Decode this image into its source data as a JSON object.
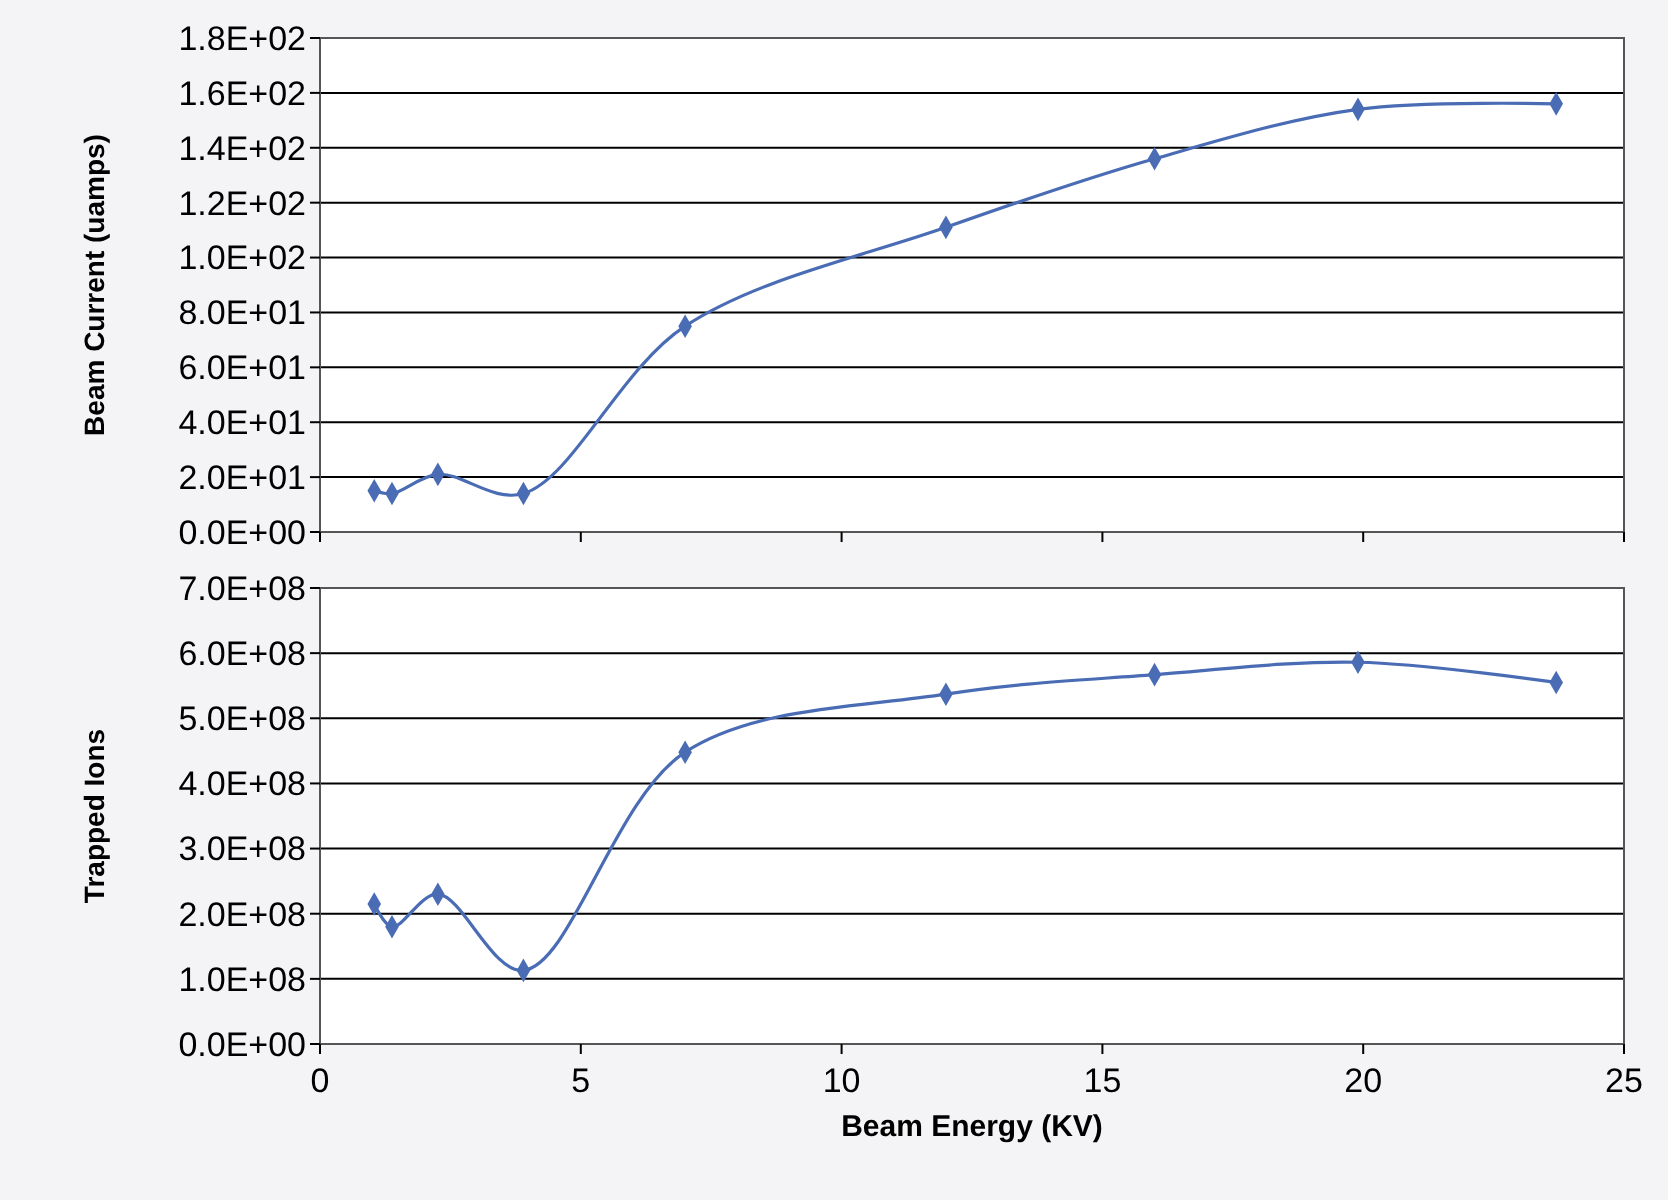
{
  "chart_data": [
    {
      "type": "line",
      "ylabel": "Beam Current (uamps)",
      "x": [
        1.04,
        1.38,
        2.26,
        3.9,
        7.0,
        12.0,
        16.0,
        19.9,
        23.7
      ],
      "series": [
        {
          "color": "#4a6cb5",
          "values": [
            15,
            14,
            21,
            14,
            75,
            111,
            136,
            154,
            156
          ]
        }
      ],
      "xlim": [
        0,
        25
      ],
      "xticks": [
        0,
        5,
        10,
        15,
        20,
        25
      ],
      "ylim": [
        0,
        180
      ],
      "yticks": [
        {
          "value": 0,
          "label": "0.0E+00"
        },
        {
          "value": 20,
          "label": "2.0E+01"
        },
        {
          "value": 40,
          "label": "4.0E+01"
        },
        {
          "value": 60,
          "label": "6.0E+01"
        },
        {
          "value": 80,
          "label": "8.0E+01"
        },
        {
          "value": 100,
          "label": "1.0E+02"
        },
        {
          "value": 120,
          "label": "1.2E+02"
        },
        {
          "value": 140,
          "label": "1.4E+02"
        },
        {
          "value": 160,
          "label": "1.6E+02"
        },
        {
          "value": 180,
          "label": "1.8E+02"
        }
      ],
      "grid": "y",
      "marker": "diamond",
      "tick_labels": "y"
    },
    {
      "type": "line",
      "ylabel": "Trapped Ions",
      "xlabel": "Beam Energy (KV)",
      "x": [
        1.04,
        1.38,
        2.26,
        3.9,
        7.0,
        12.0,
        16.0,
        19.9,
        23.7
      ],
      "series": [
        {
          "color": "#4a6cb5",
          "values": [
            215000000,
            180000000,
            230000000,
            113000000,
            448000000,
            537000000,
            567000000,
            586000000,
            555000000
          ]
        }
      ],
      "xlim": [
        0,
        25
      ],
      "xticks": [
        0,
        5,
        10,
        15,
        20,
        25
      ],
      "ylim": [
        0,
        700000000
      ],
      "yticks": [
        {
          "value": 0,
          "label": "0.0E+00"
        },
        {
          "value": 100000000,
          "label": "1.0E+08"
        },
        {
          "value": 200000000,
          "label": "2.0E+08"
        },
        {
          "value": 300000000,
          "label": "3.0E+08"
        },
        {
          "value": 400000000,
          "label": "4.0E+08"
        },
        {
          "value": 500000000,
          "label": "5.0E+08"
        },
        {
          "value": 600000000,
          "label": "6.0E+08"
        },
        {
          "value": 700000000,
          "label": "7.0E+08"
        }
      ],
      "grid": "y",
      "marker": "diamond"
    }
  ]
}
